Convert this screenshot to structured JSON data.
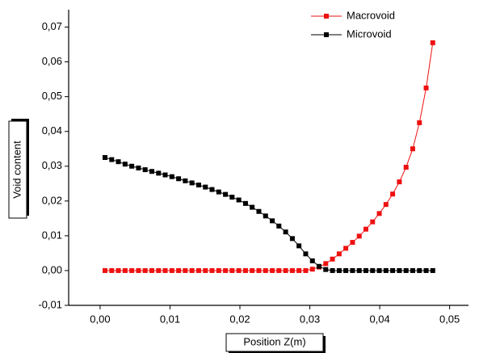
{
  "chart_data": {
    "type": "line",
    "x_label": "Position Z(m)",
    "y_label": "Void content",
    "x": [
      0.0007,
      0.00166,
      0.00261,
      0.00357,
      0.00453,
      0.00549,
      0.00644,
      0.0074,
      0.00836,
      0.00931,
      0.01027,
      0.01123,
      0.01218,
      0.01314,
      0.0141,
      0.01506,
      0.01601,
      0.01697,
      0.01793,
      0.01888,
      0.01984,
      0.0208,
      0.02175,
      0.02271,
      0.02367,
      0.02463,
      0.02558,
      0.02654,
      0.0275,
      0.02845,
      0.02941,
      0.03037,
      0.03132,
      0.03228,
      0.03324,
      0.0342,
      0.03515,
      0.03611,
      0.03707,
      0.03802,
      0.03898,
      0.03994,
      0.04089,
      0.04185,
      0.04281,
      0.04377,
      0.04472,
      0.04568,
      0.04664,
      0.04759
    ],
    "series": [
      {
        "name": "Macrovoid",
        "color": "#ee1111",
        "values": [
          0,
          0,
          0,
          0,
          0,
          0,
          0,
          0,
          0,
          0,
          0,
          0,
          0,
          0,
          0,
          0,
          0,
          0,
          0,
          0,
          0,
          0,
          0,
          0,
          0,
          0,
          0,
          0,
          0,
          0,
          0,
          0.0004,
          0.001,
          0.002,
          0.0033,
          0.0048,
          0.0064,
          0.0081,
          0.0099,
          0.0119,
          0.014,
          0.0164,
          0.019,
          0.022,
          0.0255,
          0.0297,
          0.035,
          0.0425,
          0.0525,
          0.0655
        ]
      },
      {
        "name": "Microvoid",
        "color": "#000000",
        "values": [
          0.0325,
          0.0319,
          0.0313,
          0.0306,
          0.03,
          0.0295,
          0.029,
          0.0285,
          0.028,
          0.0275,
          0.027,
          0.0264,
          0.0258,
          0.0252,
          0.0246,
          0.024,
          0.0233,
          0.0226,
          0.0219,
          0.0211,
          0.0203,
          0.0193,
          0.0182,
          0.017,
          0.0157,
          0.0143,
          0.0128,
          0.0111,
          0.0092,
          0.0071,
          0.0048,
          0.0028,
          0.0012,
          0.0003,
          0,
          0,
          0,
          0,
          0,
          0,
          0,
          0,
          0,
          0,
          0,
          0,
          0,
          0,
          0,
          0
        ]
      }
    ],
    "xlim": [
      -0.0045,
      0.0527
    ],
    "ylim": [
      -0.01,
      0.075
    ],
    "xticks": [
      {
        "value": 0,
        "label": "0,00"
      },
      {
        "value": 0.01,
        "label": "0,01"
      },
      {
        "value": 0.02,
        "label": "0,02"
      },
      {
        "value": 0.03,
        "label": "0,03"
      },
      {
        "value": 0.04,
        "label": "0,04"
      },
      {
        "value": 0.05,
        "label": "0,05"
      }
    ],
    "yticks": [
      {
        "value": -0.01,
        "label": "-0,01"
      },
      {
        "value": 0,
        "label": "0,00"
      },
      {
        "value": 0.01,
        "label": "0,01"
      },
      {
        "value": 0.02,
        "label": "0,02"
      },
      {
        "value": 0.03,
        "label": "0,03"
      },
      {
        "value": 0.04,
        "label": "0,04"
      },
      {
        "value": 0.05,
        "label": "0,05"
      },
      {
        "value": 0.06,
        "label": "0,06"
      },
      {
        "value": 0.07,
        "label": "0,07"
      }
    ],
    "legend": "upper right"
  }
}
